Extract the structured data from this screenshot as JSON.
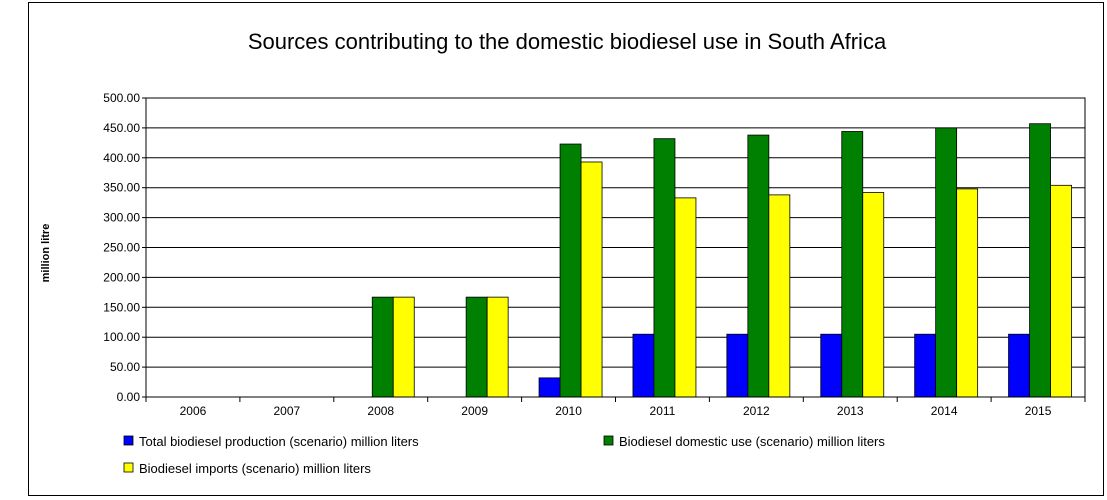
{
  "chart_data": {
    "type": "bar",
    "title": "Sources contributing to the domestic biodiesel use in South Africa",
    "xlabel": "",
    "ylabel": "million litre",
    "ylim": [
      0,
      500
    ],
    "yticks": [
      "0.00",
      "50.00",
      "100.00",
      "150.00",
      "200.00",
      "250.00",
      "300.00",
      "350.00",
      "400.00",
      "450.00",
      "500.00"
    ],
    "categories": [
      "2006",
      "2007",
      "2008",
      "2009",
      "2010",
      "2011",
      "2012",
      "2013",
      "2014",
      "2015"
    ],
    "grid": "horizontal",
    "legend_position": "bottom",
    "series": [
      {
        "name": "Total biodiesel production (scenario) million liters",
        "color": "#0000ff",
        "values": [
          0,
          0,
          0,
          0,
          32,
          105,
          105,
          105,
          105,
          105
        ]
      },
      {
        "name": "Biodiesel domestic use (scenario) million liters",
        "color": "#008000",
        "values": [
          0,
          0,
          167,
          167,
          423,
          432,
          438,
          444,
          450,
          457
        ]
      },
      {
        "name": "Biodiesel imports (scenario) million liters",
        "color": "#ffff00",
        "values": [
          0,
          0,
          167,
          167,
          393,
          333,
          338,
          342,
          348,
          354
        ]
      }
    ]
  }
}
